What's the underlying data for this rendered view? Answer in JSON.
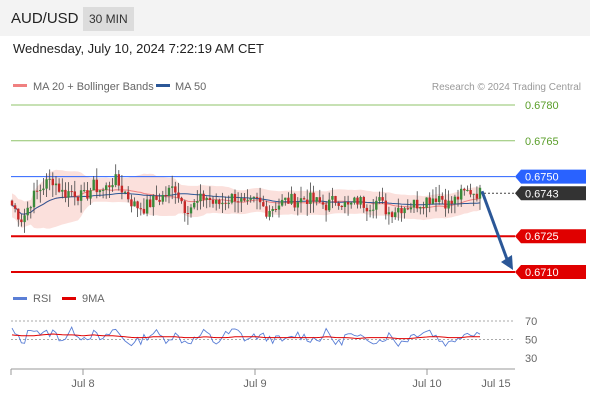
{
  "header": {
    "pair": "AUD/USD",
    "timeframe": "30 MIN"
  },
  "datetime": "Wednesday, July 10, 2024 7:22:19 AM CET",
  "credit": "Research © 2024 Trading Central",
  "legend": {
    "ma20": "MA 20 + Bollinger Bands",
    "ma50": "MA 50",
    "rsi": "RSI",
    "ma9": "9MA"
  },
  "colors": {
    "ma20": "#f08080",
    "ma50": "#2b5797",
    "bands": "#fbe0dc",
    "bull": "#3a8a3a",
    "bear": "#c62828",
    "support": "#e00000",
    "resistance": "#8fc36a",
    "pivot": "#2962ff",
    "arrow": "#2b5797",
    "current": "#333333",
    "rsi": "#5b7fd6",
    "rsi_ma": "#e00000"
  },
  "chart_data": [
    {
      "type": "candlestick",
      "x_ticks": [
        "Jul 8",
        "Jul 9",
        "Jul 10",
        "Jul 15"
      ],
      "levels": [
        {
          "value": 0.678,
          "label": "0.6780",
          "kind": "resistance"
        },
        {
          "value": 0.6765,
          "label": "0.6765",
          "kind": "resistance"
        },
        {
          "value": 0.675,
          "label": "0.6750",
          "kind": "pivot"
        },
        {
          "value": 0.6743,
          "label": "0.6743",
          "kind": "current"
        },
        {
          "value": 0.6725,
          "label": "0.6725",
          "kind": "support"
        },
        {
          "value": 0.671,
          "label": "0.6710",
          "kind": "support"
        }
      ],
      "ylim": [
        0.6705,
        0.6788
      ],
      "close_path": [
        0.6738,
        0.6732,
        0.6741,
        0.6746,
        0.6749,
        0.6743,
        0.6744,
        0.6741,
        0.6746,
        0.6744,
        0.6749,
        0.6744,
        0.6738,
        0.6737,
        0.674,
        0.6742,
        0.6746,
        0.6737,
        0.6738,
        0.6742,
        0.6738,
        0.674,
        0.6742,
        0.6737,
        0.674,
        0.6736,
        0.6738,
        0.674,
        0.674,
        0.6741,
        0.6739,
        0.6738,
        0.6741,
        0.6737,
        0.674,
        0.6738,
        0.674,
        0.6735,
        0.6737,
        0.6738,
        0.6739,
        0.6741,
        0.6742,
        0.6738,
        0.6742,
        0.6744,
        0.6743
      ],
      "forecast": {
        "from": 0.6743,
        "to": 0.671
      }
    },
    {
      "type": "line",
      "name": "RSI",
      "levels": [
        70,
        50,
        30
      ],
      "level_labels": [
        "70",
        "50",
        "30"
      ],
      "ylim": [
        20,
        80
      ],
      "rsi_path": [
        60,
        45,
        65,
        55,
        58,
        50,
        60,
        52,
        56,
        48,
        62,
        50,
        45,
        52,
        58,
        50,
        55,
        48,
        50,
        58,
        46,
        55,
        60,
        50,
        54,
        52,
        50,
        48,
        56,
        52,
        50,
        58,
        44,
        56,
        50,
        52,
        48,
        55,
        46,
        52,
        58,
        60,
        50,
        45,
        55,
        58,
        57
      ],
      "ma_path": [
        55,
        54,
        54,
        55,
        56,
        55,
        55,
        54,
        55,
        54,
        54,
        53,
        52,
        52,
        53,
        53,
        53,
        52,
        52,
        53,
        52,
        52,
        53,
        53,
        53,
        52,
        52,
        52,
        52,
        52,
        52,
        53,
        52,
        52,
        51,
        52,
        52,
        52,
        51,
        51,
        52,
        53,
        53,
        52,
        52,
        53,
        53
      ]
    }
  ]
}
